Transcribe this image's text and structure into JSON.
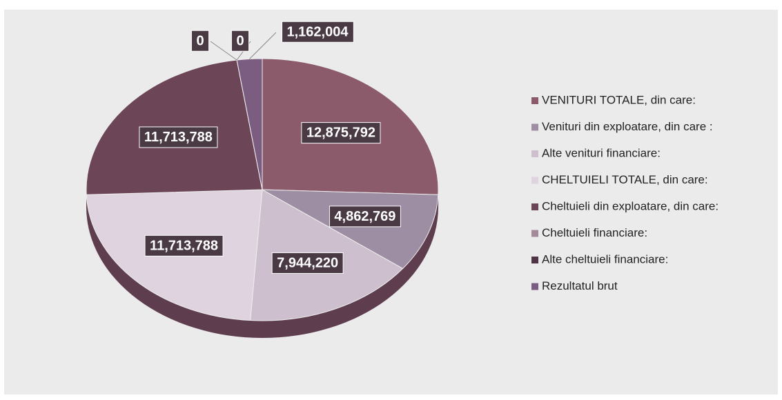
{
  "chart_data": {
    "type": "pie",
    "categories": [
      "VENITURI TOTALE, din care:",
      "Venituri din exploatare, din care :",
      "Alte venituri financiare:",
      "CHELTUIELI TOTALE, din care:",
      "Cheltuieli din exploatare, din care:",
      "Cheltuieli financiare:",
      "Alte cheltuieli financiare:",
      "Rezultatul brut"
    ],
    "values": [
      12875792,
      4862769,
      7944220,
      11713788,
      11713788,
      0,
      0,
      1162004
    ],
    "value_labels": [
      "12,875,792",
      "4,862,769",
      "7,944,220",
      "11,713,788",
      "11,713,788",
      "0",
      "0",
      "1,162,004"
    ],
    "colors": [
      "#8b5b6c",
      "#9d8ea3",
      "#cdbfcd",
      "#ded3de",
      "#6c4557",
      "#a48a98",
      "#4e3444",
      "#7c5d82"
    ],
    "legend": "right"
  }
}
